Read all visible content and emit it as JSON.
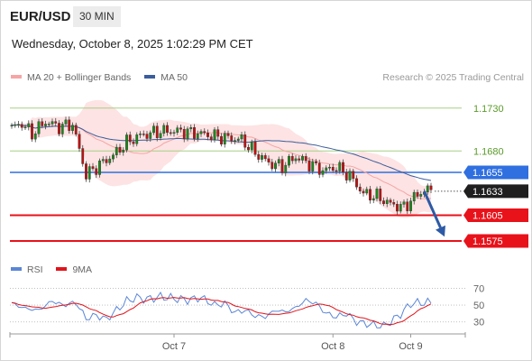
{
  "header": {
    "symbol": "EUR/USD",
    "timeframe": "30 MIN"
  },
  "timestamp": "Wednesday, October 8, 2025 1:02:29 PM CET",
  "copyright": "Research © 2025 Trading Central",
  "colors": {
    "bollinger": "#f6a5a5",
    "bollinger_fill": "#fde3e3",
    "ma50": "#3b5d9c",
    "level_green": "#a6cf85",
    "level_label_green": "#5a9a2a",
    "level_blue": "#2f6fe0",
    "level_red": "#e8121a",
    "price_label": "#1f1f1f",
    "rsi": "#5b86d6",
    "rsi_ma": "#e0141b",
    "arrow": "#2d5aa6",
    "candle_up": "#1a8a1a",
    "candle_down": "#c01010"
  },
  "chart_data": [
    {
      "type": "candlestick",
      "legend": [
        {
          "name": "MA 20 + Bollinger Bands",
          "color": "#f6a5a5"
        },
        {
          "name": "MA 50",
          "color": "#3b5d9c"
        }
      ],
      "legend_placement": "top-left",
      "ylim": [
        1.1555,
        1.1755
      ],
      "x_labels": [
        {
          "label": "Oct 7",
          "index": 48
        },
        {
          "label": "Oct 8",
          "index": 95
        },
        {
          "label": "Oct 9",
          "index": 118
        }
      ],
      "n_bars": 125,
      "ohlc_points": [
        [
          0,
          1.1707
        ],
        [
          3,
          1.1712
        ],
        [
          6,
          1.17
        ],
        [
          10,
          1.1714
        ],
        [
          14,
          1.1708
        ],
        [
          18,
          1.1711
        ],
        [
          22,
          1.1652
        ],
        [
          26,
          1.1664
        ],
        [
          30,
          1.1675
        ],
        [
          34,
          1.169
        ],
        [
          38,
          1.1698
        ],
        [
          44,
          1.1703
        ],
        [
          50,
          1.1703
        ],
        [
          56,
          1.17
        ],
        [
          62,
          1.1696
        ],
        [
          68,
          1.1693
        ],
        [
          72,
          1.1678
        ],
        [
          76,
          1.1666
        ],
        [
          80,
          1.1662
        ],
        [
          84,
          1.1673
        ],
        [
          88,
          1.1665
        ],
        [
          92,
          1.1657
        ],
        [
          96,
          1.1661
        ],
        [
          100,
          1.1651
        ],
        [
          104,
          1.163
        ],
        [
          108,
          1.1627
        ],
        [
          112,
          1.1618
        ],
        [
          116,
          1.1614
        ],
        [
          119,
          1.1626
        ],
        [
          122,
          1.1634
        ]
      ],
      "levels": [
        {
          "value": "1.1730",
          "kind": "resistance-green"
        },
        {
          "value": "1.1680",
          "kind": "resistance-green"
        },
        {
          "value": "1.1655",
          "kind": "pivot"
        },
        {
          "value": "1.1633",
          "kind": "last-price"
        },
        {
          "value": "1.1605",
          "kind": "support-red"
        },
        {
          "value": "1.1575",
          "kind": "support-red"
        }
      ],
      "forecast_arrow": {
        "from_index": 122,
        "from": 1.1633,
        "to_index": 128,
        "to": 1.158
      }
    },
    {
      "type": "line",
      "legend": [
        {
          "name": "RSI",
          "color": "#5b86d6"
        },
        {
          "name": "9MA",
          "color": "#e0141b"
        }
      ],
      "ylim": [
        20,
        78
      ],
      "y_ticks": [
        "70",
        "50",
        "30"
      ],
      "rsi_points": [
        [
          0,
          52
        ],
        [
          4,
          46
        ],
        [
          8,
          44
        ],
        [
          12,
          55
        ],
        [
          15,
          50
        ],
        [
          19,
          53
        ],
        [
          22,
          34
        ],
        [
          25,
          38
        ],
        [
          28,
          33
        ],
        [
          31,
          44
        ],
        [
          34,
          55
        ],
        [
          37,
          59
        ],
        [
          40,
          57
        ],
        [
          44,
          60
        ],
        [
          48,
          58
        ],
        [
          52,
          56
        ],
        [
          56,
          59
        ],
        [
          60,
          50
        ],
        [
          63,
          52
        ],
        [
          66,
          41
        ],
        [
          69,
          44
        ],
        [
          72,
          37
        ],
        [
          75,
          36
        ],
        [
          78,
          44
        ],
        [
          81,
          42
        ],
        [
          84,
          47
        ],
        [
          87,
          56
        ],
        [
          90,
          52
        ],
        [
          93,
          40
        ],
        [
          96,
          36
        ],
        [
          99,
          40
        ],
        [
          102,
          30
        ],
        [
          106,
          27
        ],
        [
          110,
          25
        ],
        [
          113,
          33
        ],
        [
          116,
          43
        ],
        [
          118,
          52
        ],
        [
          122,
          53
        ]
      ]
    }
  ]
}
